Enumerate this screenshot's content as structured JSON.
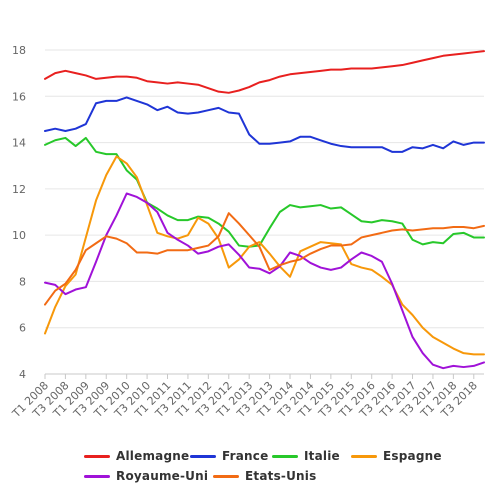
{
  "chart_data": {
    "type": "line",
    "title": "",
    "xlabel": "",
    "ylabel": "",
    "ylim": [
      4,
      18
    ],
    "y_ticks": [
      4,
      6,
      8,
      10,
      12,
      14,
      16,
      18
    ],
    "grid": "horizontal",
    "legend_position": "bottom",
    "x": [
      "T1 2008",
      "T2 2008",
      "T3 2008",
      "T4 2008",
      "T1 2009",
      "T2 2009",
      "T3 2009",
      "T4 2009",
      "T1 2010",
      "T2 2010",
      "T3 2010",
      "T4 2010",
      "T1 2011",
      "T2 2011",
      "T3 2011",
      "T4 2011",
      "T1 2012",
      "T2 2012",
      "T3 2012",
      "T4 2012",
      "T1 2013",
      "T2 2013",
      "T3 2013",
      "T4 2013",
      "T1 2014",
      "T2 2014",
      "T3 2014",
      "T4 2014",
      "T1 2015",
      "T2 2015",
      "T3 2015",
      "T4 2015",
      "T1 2016",
      "T2 2016",
      "T3 2016",
      "T4 2016",
      "T1 2017",
      "T2 2017",
      "T3 2017",
      "T4 2017",
      "T1 2018",
      "T2 2018",
      "T3 2018",
      "T4 2018"
    ],
    "x_tick_labels": [
      "T1 2008",
      "T3 2008",
      "T1 2009",
      "T3 2009",
      "T1 2010",
      "T3 2010",
      "T1 2011",
      "T3 2011",
      "T1 2012",
      "T3 2012",
      "T1 2013",
      "T3 2013",
      "T1 2014",
      "T3 2014",
      "T1 2015",
      "T3 2015",
      "T1 2016",
      "T3 2016",
      "T1 2017",
      "T3 2017",
      "T1 2018",
      "T3 2018"
    ],
    "series": [
      {
        "name": "Allemagne",
        "color": "#e8201f",
        "values": [
          16.75,
          17.0,
          17.1,
          17.0,
          16.9,
          16.75,
          16.8,
          16.85,
          16.85,
          16.8,
          16.65,
          16.6,
          16.55,
          16.6,
          16.55,
          16.5,
          16.35,
          16.2,
          16.15,
          16.25,
          16.4,
          16.6,
          16.7,
          16.85,
          16.95,
          17.0,
          17.05,
          17.1,
          17.15,
          17.15,
          17.2,
          17.2,
          17.2,
          17.25,
          17.3,
          17.35,
          17.45,
          17.55,
          17.65,
          17.75,
          17.8,
          17.85,
          17.9,
          17.95
        ]
      },
      {
        "name": "France",
        "color": "#1f35d6",
        "values": [
          14.5,
          14.6,
          14.5,
          14.6,
          14.8,
          15.7,
          15.8,
          15.8,
          15.95,
          15.8,
          15.65,
          15.4,
          15.55,
          15.3,
          15.25,
          15.3,
          15.4,
          15.5,
          15.3,
          15.25,
          14.35,
          13.95,
          13.95,
          14.0,
          14.05,
          14.25,
          14.25,
          14.1,
          13.95,
          13.85,
          13.8,
          13.8,
          13.8,
          13.8,
          13.6,
          13.6,
          13.8,
          13.75,
          13.9,
          13.75,
          14.05,
          13.9,
          14.0,
          14.0
        ]
      },
      {
        "name": "Italie",
        "color": "#27c82a",
        "values": [
          13.9,
          14.1,
          14.2,
          13.85,
          14.2,
          13.6,
          13.5,
          13.5,
          12.8,
          12.4,
          11.4,
          11.15,
          10.85,
          10.65,
          10.65,
          10.8,
          10.75,
          10.5,
          10.15,
          9.55,
          9.5,
          9.55,
          10.3,
          11.0,
          11.3,
          11.2,
          11.25,
          11.3,
          11.15,
          11.2,
          10.9,
          10.6,
          10.55,
          10.65,
          10.6,
          10.5,
          9.8,
          9.6,
          9.7,
          9.65,
          10.05,
          10.1,
          9.9,
          9.9
        ]
      },
      {
        "name": "Espagne",
        "color": "#f7980a",
        "values": [
          5.75,
          6.9,
          7.8,
          8.3,
          9.9,
          11.5,
          12.6,
          13.4,
          13.1,
          12.5,
          11.3,
          10.1,
          9.95,
          9.85,
          10.0,
          10.75,
          10.5,
          9.85,
          8.6,
          8.95,
          9.5,
          9.7,
          9.2,
          8.65,
          8.2,
          9.3,
          9.5,
          9.7,
          9.65,
          9.6,
          8.75,
          8.6,
          8.5,
          8.2,
          7.85,
          7.0,
          6.55,
          6.0,
          5.6,
          5.35,
          5.1,
          4.9,
          4.85,
          4.85
        ]
      },
      {
        "name": "Royaume-Uni",
        "color": "#a012d8",
        "values": [
          7.95,
          7.85,
          7.45,
          7.65,
          7.75,
          8.85,
          10.0,
          10.85,
          11.8,
          11.65,
          11.4,
          11.0,
          10.1,
          9.8,
          9.55,
          9.2,
          9.3,
          9.5,
          9.6,
          9.15,
          8.6,
          8.55,
          8.35,
          8.65,
          9.25,
          9.1,
          8.8,
          8.6,
          8.5,
          8.6,
          8.95,
          9.25,
          9.1,
          8.85,
          7.9,
          6.75,
          5.6,
          4.9,
          4.4,
          4.25,
          4.35,
          4.3,
          4.35,
          4.5
        ]
      },
      {
        "name": "Etats-Unis",
        "color": "#f26b14",
        "values": [
          7.0,
          7.6,
          7.9,
          8.5,
          9.35,
          9.65,
          9.95,
          9.85,
          9.65,
          9.25,
          9.25,
          9.2,
          9.35,
          9.35,
          9.35,
          9.45,
          9.55,
          9.95,
          10.95,
          10.5,
          10.0,
          9.5,
          8.5,
          8.7,
          8.85,
          8.95,
          9.2,
          9.4,
          9.55,
          9.55,
          9.6,
          9.9,
          10.0,
          10.1,
          10.2,
          10.25,
          10.2,
          10.25,
          10.3,
          10.3,
          10.35,
          10.35,
          10.3,
          10.4
        ]
      }
    ]
  }
}
